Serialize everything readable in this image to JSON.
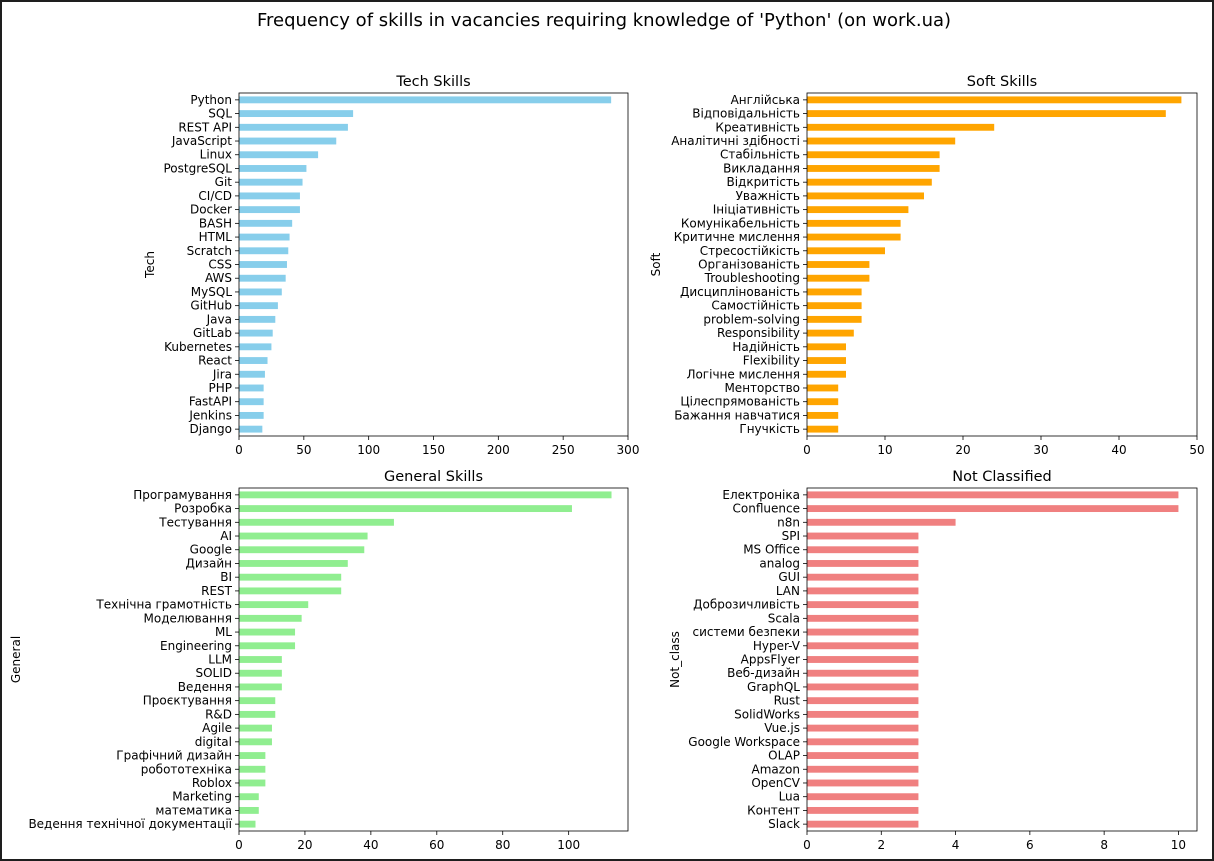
{
  "figure_title": "Frequency of skills in vacancies requiring knowledge of 'Python' (on work.ua)",
  "chart_data": [
    {
      "type": "bar",
      "orientation": "horizontal",
      "title": "Tech Skills",
      "ylabel": "Tech",
      "xlabel": "",
      "color": "#87ceeb",
      "xlim": [
        0,
        300
      ],
      "xticks": [
        0,
        50,
        100,
        150,
        200,
        250,
        300
      ],
      "categories": [
        "Python",
        "SQL",
        "REST API",
        "JavaScript",
        "Linux",
        "PostgreSQL",
        "Git",
        "CI/CD",
        "Docker",
        "BASH",
        "HTML",
        "Scratch",
        "CSS",
        "AWS",
        "MySQL",
        "GitHub",
        "Java",
        "GitLab",
        "Kubernetes",
        "React",
        "Jira",
        "PHP",
        "FastAPI",
        "Jenkins",
        "Django"
      ],
      "values": [
        287,
        88,
        84,
        75,
        61,
        52,
        49,
        47,
        47,
        41,
        39,
        38,
        37,
        36,
        33,
        30,
        28,
        26,
        25,
        22,
        20,
        19,
        19,
        19,
        18
      ]
    },
    {
      "type": "bar",
      "orientation": "horizontal",
      "title": "Soft Skills",
      "ylabel": "Soft",
      "xlabel": "",
      "color": "#ffa500",
      "xlim": [
        0,
        50
      ],
      "xticks": [
        0,
        10,
        20,
        30,
        40,
        50
      ],
      "categories": [
        "Англійська",
        "Відповідальність",
        "Креативність",
        "Аналітичні здібності",
        "Стабільність",
        "Викладання",
        "Відкритість",
        "Уважність",
        "Ініціативність",
        "Комунікабельність",
        "Критичне мислення",
        "Стресостійкість",
        "Організованість",
        "Troubleshooting",
        "Дисциплінованість",
        "Самостійність",
        "problem-solving",
        "Responsibility",
        "Надійність",
        "Flexibility",
        "Логічне мислення",
        "Менторство",
        "Цілеспрямованість",
        "Бажання навчатися",
        "Гнучкість"
      ],
      "values": [
        48,
        46,
        24,
        19,
        17,
        17,
        16,
        15,
        13,
        12,
        12,
        10,
        8,
        8,
        7,
        7,
        7,
        6,
        5,
        5,
        5,
        4,
        4,
        4,
        4
      ]
    },
    {
      "type": "bar",
      "orientation": "horizontal",
      "title": "General Skills",
      "ylabel": "General",
      "xlabel": "",
      "color": "#90ee90",
      "xlim": [
        0,
        118
      ],
      "xticks": [
        0,
        20,
        40,
        60,
        80,
        100
      ],
      "categories": [
        "Програмування",
        "Розробка",
        "Тестування",
        "AI",
        "Google",
        "Дизайн",
        "BI",
        "REST",
        "Технічна грамотність",
        "Моделювання",
        "ML",
        "Engineering",
        "LLM",
        "SOLID",
        "Ведення",
        "Проєктування",
        "R&D",
        "Agile",
        "digital",
        "Графічний дизайн",
        "робототехніка",
        "Roblox",
        "Marketing",
        "математика",
        "Ведення технічної документації"
      ],
      "values": [
        113,
        101,
        47,
        39,
        38,
        33,
        31,
        31,
        21,
        19,
        17,
        17,
        13,
        13,
        13,
        11,
        11,
        10,
        10,
        8,
        8,
        8,
        6,
        6,
        5
      ]
    },
    {
      "type": "bar",
      "orientation": "horizontal",
      "title": "Not Classified",
      "ylabel": "Not_class",
      "xlabel": "",
      "color": "#f08080",
      "xlim": [
        0,
        10.5
      ],
      "xticks": [
        0,
        2,
        4,
        6,
        8,
        10
      ],
      "categories": [
        "Електроніка",
        "Confluence",
        "n8n",
        "SPI",
        "MS Office",
        "analog",
        "GUI",
        "LAN",
        "Доброзичливість",
        "Scala",
        "системи безпеки",
        "Hyper-V",
        "AppsFlyer",
        "Веб-дизайн",
        "GraphQL",
        "Rust",
        "SolidWorks",
        "Vue.js",
        "Google Workspace",
        "OLAP",
        "Amazon",
        "OpenCV",
        "Lua",
        "Контент",
        "Slack"
      ],
      "values": [
        10,
        10,
        4,
        3,
        3,
        3,
        3,
        3,
        3,
        3,
        3,
        3,
        3,
        3,
        3,
        3,
        3,
        3,
        3,
        3,
        3,
        3,
        3,
        3,
        3
      ]
    }
  ]
}
